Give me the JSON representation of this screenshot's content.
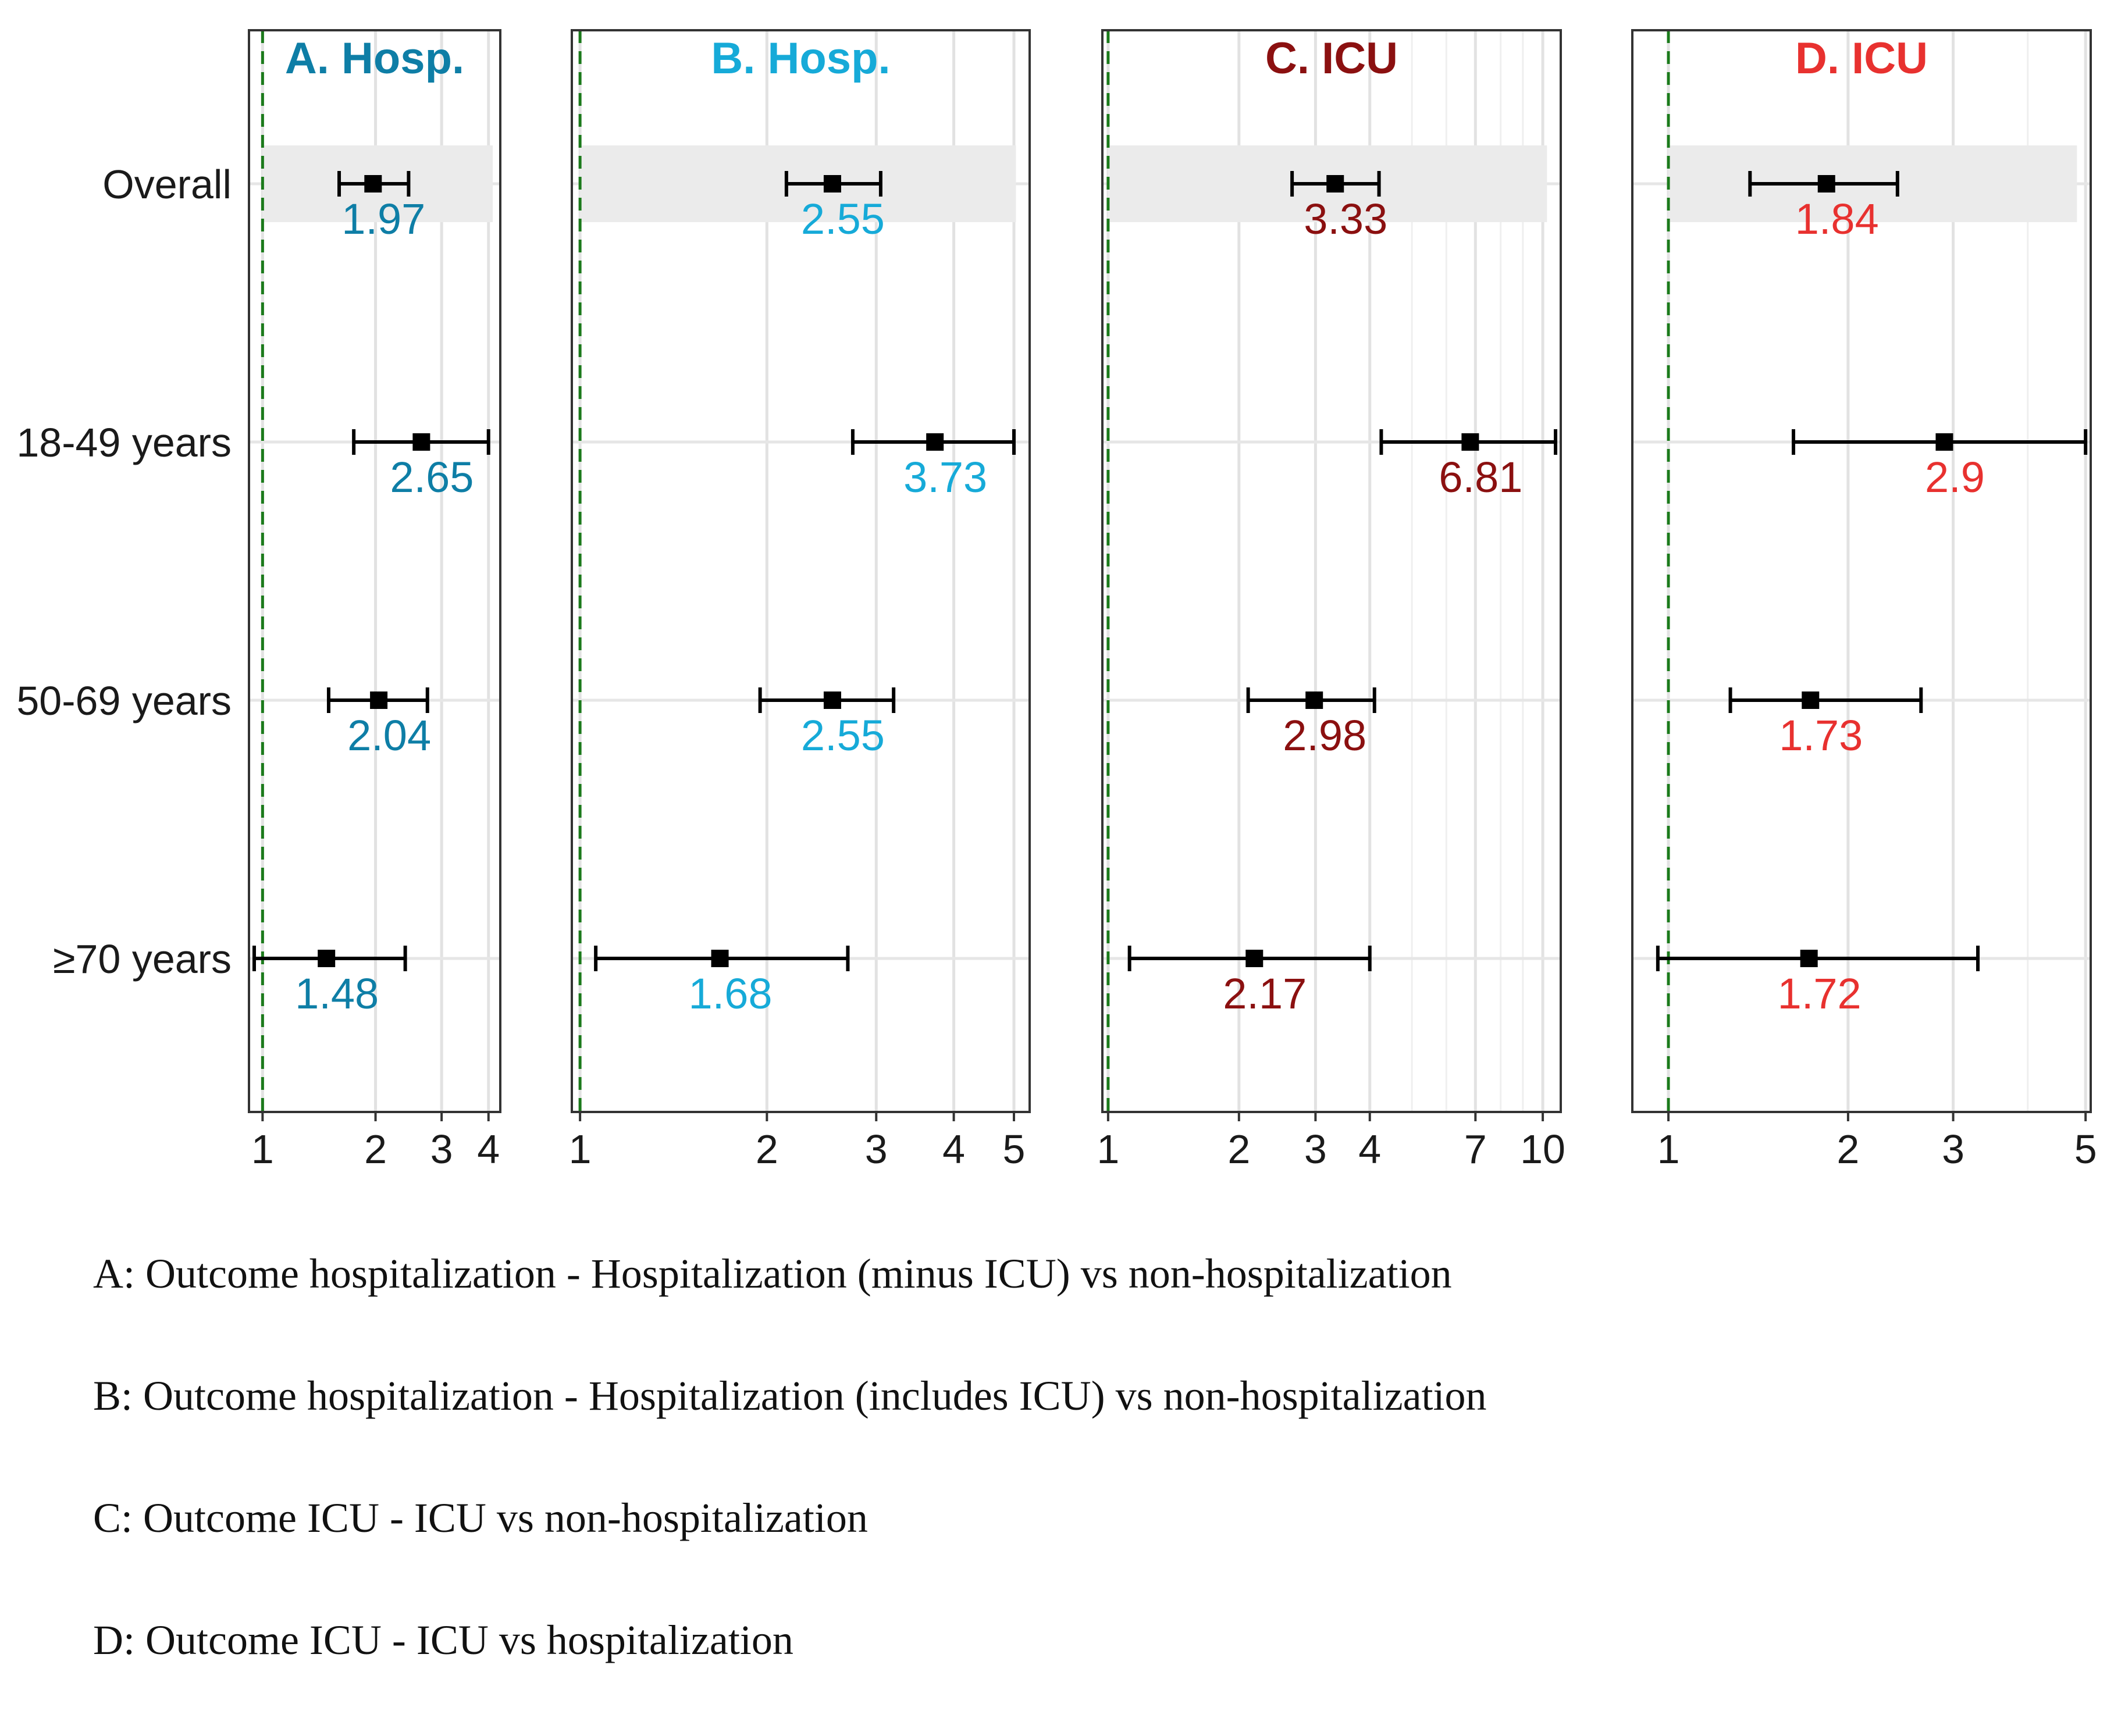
{
  "chart_data": {
    "type": "forest",
    "row_labels": [
      "Overall",
      "18-49 years",
      "50-69 years",
      "≥70 years"
    ],
    "x_scale": "log",
    "reference_line": 1,
    "panels": [
      {
        "id": "A",
        "title": "A. Hosp.",
        "color": "#0e7ea6",
        "xlim": [
          0.92,
          4.3
        ],
        "ticks": [
          1,
          2,
          3,
          4
        ],
        "tick_labels": [
          "1",
          "2",
          "3",
          "4"
        ],
        "rows": [
          {
            "label": "Overall",
            "estimate": 1.97,
            "ci": [
              1.6,
              2.45
            ],
            "estimate_label": "1.97"
          },
          {
            "label": "18-49 years",
            "estimate": 2.65,
            "ci": [
              1.75,
              4.0
            ],
            "estimate_label": "2.65"
          },
          {
            "label": "50-69 years",
            "estimate": 2.04,
            "ci": [
              1.5,
              2.75
            ],
            "estimate_label": "2.04"
          },
          {
            "label": "≥70 years",
            "estimate": 1.48,
            "ci": [
              0.95,
              2.4
            ],
            "estimate_label": "1.48"
          }
        ]
      },
      {
        "id": "B",
        "title": "B. Hosp.",
        "color": "#16aad8",
        "xlim": [
          0.97,
          5.3
        ],
        "ticks": [
          1,
          2,
          3,
          4,
          5
        ],
        "tick_labels": [
          "1",
          "2",
          "3",
          "4",
          "5"
        ],
        "rows": [
          {
            "label": "Overall",
            "estimate": 2.55,
            "ci": [
              2.15,
              3.05
            ],
            "estimate_label": "2.55"
          },
          {
            "label": "18-49 years",
            "estimate": 3.73,
            "ci": [
              2.75,
              5.0
            ],
            "estimate_label": "3.73"
          },
          {
            "label": "50-69 years",
            "estimate": 2.55,
            "ci": [
              1.95,
              3.2
            ],
            "estimate_label": "2.55"
          },
          {
            "label": "≥70 years",
            "estimate": 1.68,
            "ci": [
              1.06,
              2.7
            ],
            "estimate_label": "1.68"
          }
        ]
      },
      {
        "id": "C",
        "title": "C. ICU",
        "color": "#8b1010",
        "xlim": [
          0.97,
          11.0
        ],
        "ticks": [
          1,
          2,
          3,
          4,
          7,
          10
        ],
        "tick_labels": [
          "1",
          "2",
          "3",
          "4",
          "7",
          "10"
        ],
        "rows": [
          {
            "label": "Overall",
            "estimate": 3.33,
            "ci": [
              2.65,
              4.2
            ],
            "estimate_label": "3.33"
          },
          {
            "label": "18-49 years",
            "estimate": 6.81,
            "ci": [
              4.25,
              10.7
            ],
            "estimate_label": "6.81"
          },
          {
            "label": "50-69 years",
            "estimate": 2.98,
            "ci": [
              2.1,
              4.1
            ],
            "estimate_label": "2.98"
          },
          {
            "label": "≥70 years",
            "estimate": 2.17,
            "ci": [
              1.12,
              4.0
            ],
            "estimate_label": "2.17"
          }
        ]
      },
      {
        "id": "D",
        "title": "D. ICU",
        "color": "#e8312f",
        "xlim": [
          0.87,
          5.1
        ],
        "ticks": [
          1,
          2,
          3,
          5
        ],
        "tick_labels": [
          "1",
          "2",
          "3",
          "5"
        ],
        "rows": [
          {
            "label": "Overall",
            "estimate": 1.84,
            "ci": [
              1.37,
              2.42
            ],
            "estimate_label": "1.84"
          },
          {
            "label": "18-49 years",
            "estimate": 2.9,
            "ci": [
              1.62,
              5.0
            ],
            "estimate_label": "2.9"
          },
          {
            "label": "50-69 years",
            "estimate": 1.73,
            "ci": [
              1.27,
              2.65
            ],
            "estimate_label": "1.73"
          },
          {
            "label": "≥70 years",
            "estimate": 1.72,
            "ci": [
              0.96,
              3.3
            ],
            "estimate_label": "1.72"
          }
        ]
      }
    ]
  },
  "caption": [
    "A: Outcome hospitalization - Hospitalization (minus ICU) vs non-hospitalization",
    "B: Outcome hospitalization - Hospitalization (includes ICU) vs non-hospitalization",
    "C: Outcome ICU - ICU vs non-hospitalization",
    "D: Outcome ICU - ICU vs hospitalization"
  ]
}
